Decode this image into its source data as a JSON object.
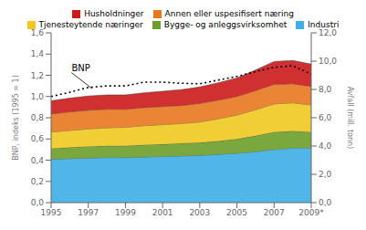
{
  "chart_data": {
    "type": "area",
    "stacked": true,
    "grid": false,
    "legend": "top",
    "x": [
      1995,
      1996,
      1997,
      1998,
      1999,
      2000,
      2001,
      2002,
      2003,
      2004,
      2005,
      2006,
      2007,
      2008,
      2009
    ],
    "xlim": [
      1995,
      2009
    ],
    "xticks": [
      1995,
      1997,
      1999,
      2001,
      2003,
      2005,
      2007,
      {
        "value": 2009,
        "label": "2009*"
      }
    ],
    "ylabel": "BNP, indeks (1995 = 1)",
    "ylim": [
      0.0,
      1.6
    ],
    "yticks": [
      {
        "value": 0.0,
        "label": "0,0"
      },
      {
        "value": 0.2,
        "label": "0,2"
      },
      {
        "value": 0.4,
        "label": "0,4"
      },
      {
        "value": 0.6,
        "label": "0,6"
      },
      {
        "value": 0.8,
        "label": "0,8"
      },
      {
        "value": 1.0,
        "label": "1,0"
      },
      {
        "value": 1.2,
        "label": "1,2"
      },
      {
        "value": 1.4,
        "label": "1,4"
      },
      {
        "value": 1.6,
        "label": "1,6"
      }
    ],
    "y2label": "Avfall (mill. tonn)",
    "y2lim": [
      0.0,
      12.0
    ],
    "y2ticks": [
      {
        "value": 0.0,
        "label": "0,0"
      },
      {
        "value": 2.0,
        "label": "2,0"
      },
      {
        "value": 4.0,
        "label": "4,0"
      },
      {
        "value": 6.0,
        "label": "6,0"
      },
      {
        "value": 8.0,
        "label": "8,0"
      },
      {
        "value": 10.0,
        "label": "10,0"
      },
      {
        "value": 12.0,
        "label": "12,0"
      }
    ],
    "series": [
      {
        "name": "Industri",
        "color": "#3daee6",
        "values": [
          0.41,
          0.415,
          0.42,
          0.425,
          0.425,
          0.43,
          0.435,
          0.44,
          0.445,
          0.455,
          0.465,
          0.48,
          0.5,
          0.515,
          0.515
        ]
      },
      {
        "name": "Bygge- og anleggsvirksomhet",
        "color": "#6b9e2a",
        "values": [
          0.1,
          0.105,
          0.11,
          0.11,
          0.11,
          0.115,
          0.115,
          0.12,
          0.12,
          0.125,
          0.135,
          0.15,
          0.165,
          0.16,
          0.15
        ]
      },
      {
        "name": "Tjenesteytende næringer",
        "color": "#f0c820",
        "values": [
          0.155,
          0.16,
          0.165,
          0.17,
          0.175,
          0.18,
          0.185,
          0.185,
          0.195,
          0.21,
          0.225,
          0.245,
          0.265,
          0.265,
          0.255
        ]
      },
      {
        "name": "Annen eller uspesifisert næring",
        "color": "#e87820",
        "values": [
          0.17,
          0.175,
          0.175,
          0.175,
          0.17,
          0.17,
          0.17,
          0.17,
          0.175,
          0.175,
          0.175,
          0.18,
          0.185,
          0.18,
          0.175
        ]
      },
      {
        "name": "Husholdninger",
        "color": "#cc1a1a",
        "values": [
          0.125,
          0.13,
          0.135,
          0.135,
          0.135,
          0.14,
          0.145,
          0.15,
          0.155,
          0.165,
          0.175,
          0.195,
          0.215,
          0.22,
          0.21
        ]
      },
      {
        "type": "line",
        "color": "#000000",
        "line_style": "dotted",
        "values": [
          1.0,
          1.04,
          1.085,
          1.1,
          1.1,
          1.135,
          1.135,
          1.125,
          1.12,
          1.155,
          1.19,
          1.235,
          1.275,
          1.29,
          1.21
        ]
      }
    ],
    "annotations": [
      {
        "text": "BNP",
        "x": 1996.1,
        "y": 1.225,
        "arrow_to": [
          1997.2,
          1.075
        ]
      }
    ]
  }
}
